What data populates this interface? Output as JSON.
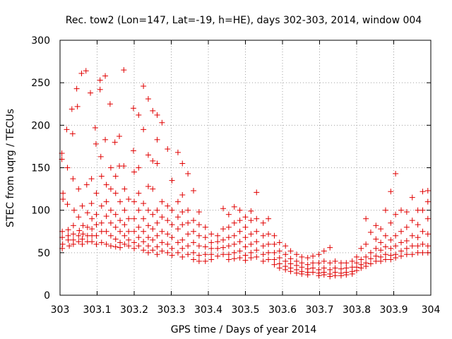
{
  "chart_data": {
    "type": "scatter",
    "title": "Rec. tow2 (Lon=147, Lat=-19, h=HE), days 302-303, 2014, window 004",
    "xlabel": "GPS time / Days of year 2014",
    "ylabel": "STEC from uqrg / TECUs",
    "xlim": [
      303,
      304
    ],
    "ylim": [
      0,
      300
    ],
    "x_ticks": [
      "303",
      "303.1",
      "303.2",
      "303.3",
      "303.4",
      "303.5",
      "303.6",
      "303.7",
      "303.8",
      "303.9",
      "304"
    ],
    "y_ticks": [
      "0",
      "50",
      "100",
      "150",
      "200",
      "250",
      "300"
    ],
    "grid": true,
    "marker": "plus",
    "color": "#e00000",
    "points": [
      [
        303.005,
        167
      ],
      [
        303.005,
        160
      ],
      [
        303.008,
        120
      ],
      [
        303.008,
        113
      ],
      [
        303.006,
        75
      ],
      [
        303.006,
        68
      ],
      [
        303.007,
        60
      ],
      [
        303.006,
        55
      ],
      [
        303.018,
        195
      ],
      [
        303.02,
        150
      ],
      [
        303.02,
        107
      ],
      [
        303.022,
        77
      ],
      [
        303.022,
        70
      ],
      [
        303.022,
        65
      ],
      [
        303.025,
        58
      ],
      [
        303.032,
        219
      ],
      [
        303.034,
        190
      ],
      [
        303.035,
        137
      ],
      [
        303.038,
        100
      ],
      [
        303.036,
        82
      ],
      [
        303.036,
        72
      ],
      [
        303.036,
        65
      ],
      [
        303.036,
        60
      ],
      [
        303.045,
        243
      ],
      [
        303.047,
        222
      ],
      [
        303.05,
        125
      ],
      [
        303.05,
        92
      ],
      [
        303.052,
        76
      ],
      [
        303.05,
        70
      ],
      [
        303.05,
        63
      ],
      [
        303.058,
        261
      ],
      [
        303.06,
        105
      ],
      [
        303.062,
        82
      ],
      [
        303.062,
        72
      ],
      [
        303.06,
        66
      ],
      [
        303.06,
        60
      ],
      [
        303.07,
        264
      ],
      [
        303.072,
        130
      ],
      [
        303.074,
        97
      ],
      [
        303.074,
        80
      ],
      [
        303.074,
        70
      ],
      [
        303.074,
        63
      ],
      [
        303.082,
        238
      ],
      [
        303.085,
        137
      ],
      [
        303.085,
        108
      ],
      [
        303.086,
        90
      ],
      [
        303.086,
        78
      ],
      [
        303.086,
        70
      ],
      [
        303.086,
        63
      ],
      [
        303.095,
        197
      ],
      [
        303.097,
        178
      ],
      [
        303.098,
        120
      ],
      [
        303.098,
        95
      ],
      [
        303.098,
        83
      ],
      [
        303.098,
        70
      ],
      [
        303.098,
        60
      ],
      [
        303.108,
        253
      ],
      [
        303.108,
        242
      ],
      [
        303.11,
        163
      ],
      [
        303.112,
        140
      ],
      [
        303.112,
        105
      ],
      [
        303.112,
        85
      ],
      [
        303.112,
        75
      ],
      [
        303.112,
        62
      ],
      [
        303.122,
        258
      ],
      [
        303.122,
        183
      ],
      [
        303.125,
        130
      ],
      [
        303.125,
        110
      ],
      [
        303.125,
        93
      ],
      [
        303.125,
        75
      ],
      [
        303.125,
        60
      ],
      [
        303.135,
        225
      ],
      [
        303.137,
        150
      ],
      [
        303.137,
        125
      ],
      [
        303.137,
        100
      ],
      [
        303.137,
        85
      ],
      [
        303.137,
        70
      ],
      [
        303.137,
        58
      ],
      [
        303.148,
        180
      ],
      [
        303.15,
        140
      ],
      [
        303.15,
        120
      ],
      [
        303.15,
        95
      ],
      [
        303.15,
        80
      ],
      [
        303.15,
        66
      ],
      [
        303.15,
        57
      ],
      [
        303.16,
        187
      ],
      [
        303.16,
        152
      ],
      [
        303.162,
        110
      ],
      [
        303.162,
        88
      ],
      [
        303.162,
        75
      ],
      [
        303.162,
        62
      ],
      [
        303.162,
        56
      ],
      [
        303.172,
        265
      ],
      [
        303.172,
        152
      ],
      [
        303.174,
        125
      ],
      [
        303.174,
        100
      ],
      [
        303.174,
        83
      ],
      [
        303.174,
        70
      ],
      [
        303.174,
        60
      ],
      [
        303.185,
        113
      ],
      [
        303.185,
        90
      ],
      [
        303.185,
        75
      ],
      [
        303.185,
        65
      ],
      [
        303.185,
        58
      ],
      [
        303.198,
        220
      ],
      [
        303.198,
        170
      ],
      [
        303.2,
        145
      ],
      [
        303.2,
        110
      ],
      [
        303.2,
        90
      ],
      [
        303.2,
        75
      ],
      [
        303.2,
        62
      ],
      [
        303.2,
        55
      ],
      [
        303.212,
        212
      ],
      [
        303.212,
        150
      ],
      [
        303.212,
        120
      ],
      [
        303.212,
        100
      ],
      [
        303.212,
        80
      ],
      [
        303.212,
        68
      ],
      [
        303.212,
        58
      ],
      [
        303.225,
        246
      ],
      [
        303.225,
        195
      ],
      [
        303.225,
        108
      ],
      [
        303.225,
        90
      ],
      [
        303.225,
        75
      ],
      [
        303.225,
        63
      ],
      [
        303.225,
        53
      ],
      [
        303.238,
        231
      ],
      [
        303.238,
        165
      ],
      [
        303.238,
        128
      ],
      [
        303.238,
        100
      ],
      [
        303.238,
        82
      ],
      [
        303.238,
        68
      ],
      [
        303.238,
        58
      ],
      [
        303.238,
        50
      ],
      [
        303.25,
        217
      ],
      [
        303.25,
        158
      ],
      [
        303.25,
        125
      ],
      [
        303.25,
        95
      ],
      [
        303.25,
        78
      ],
      [
        303.25,
        65
      ],
      [
        303.25,
        53
      ],
      [
        303.262,
        212
      ],
      [
        303.262,
        183
      ],
      [
        303.262,
        155
      ],
      [
        303.262,
        100
      ],
      [
        303.262,
        85
      ],
      [
        303.262,
        70
      ],
      [
        303.262,
        57
      ],
      [
        303.262,
        48
      ],
      [
        303.275,
        203
      ],
      [
        303.275,
        110
      ],
      [
        303.275,
        92
      ],
      [
        303.275,
        75
      ],
      [
        303.275,
        62
      ],
      [
        303.275,
        52
      ],
      [
        303.29,
        172
      ],
      [
        303.29,
        105
      ],
      [
        303.29,
        88
      ],
      [
        303.29,
        72
      ],
      [
        303.29,
        60
      ],
      [
        303.29,
        50
      ],
      [
        303.302,
        135
      ],
      [
        303.302,
        100
      ],
      [
        303.302,
        83
      ],
      [
        303.302,
        68
      ],
      [
        303.302,
        55
      ],
      [
        303.302,
        47
      ],
      [
        303.318,
        168
      ],
      [
        303.318,
        110
      ],
      [
        303.318,
        92
      ],
      [
        303.318,
        78
      ],
      [
        303.318,
        62
      ],
      [
        303.318,
        50
      ],
      [
        303.33,
        155
      ],
      [
        303.33,
        118
      ],
      [
        303.33,
        98
      ],
      [
        303.33,
        83
      ],
      [
        303.33,
        65
      ],
      [
        303.33,
        55
      ],
      [
        303.33,
        45
      ],
      [
        303.345,
        143
      ],
      [
        303.345,
        100
      ],
      [
        303.345,
        85
      ],
      [
        303.345,
        72
      ],
      [
        303.345,
        58
      ],
      [
        303.345,
        48
      ],
      [
        303.36,
        123
      ],
      [
        303.36,
        88
      ],
      [
        303.36,
        75
      ],
      [
        303.36,
        62
      ],
      [
        303.36,
        50
      ],
      [
        303.36,
        42
      ],
      [
        303.375,
        98
      ],
      [
        303.375,
        83
      ],
      [
        303.375,
        70
      ],
      [
        303.375,
        58
      ],
      [
        303.375,
        47
      ],
      [
        303.375,
        40
      ],
      [
        303.392,
        80
      ],
      [
        303.392,
        68
      ],
      [
        303.392,
        57
      ],
      [
        303.392,
        48
      ],
      [
        303.392,
        40
      ],
      [
        303.408,
        72
      ],
      [
        303.408,
        62
      ],
      [
        303.408,
        55
      ],
      [
        303.408,
        48
      ],
      [
        303.408,
        42
      ],
      [
        303.425,
        70
      ],
      [
        303.425,
        63
      ],
      [
        303.425,
        55
      ],
      [
        303.425,
        46
      ],
      [
        303.44,
        102
      ],
      [
        303.44,
        78
      ],
      [
        303.44,
        65
      ],
      [
        303.44,
        56
      ],
      [
        303.44,
        48
      ],
      [
        303.455,
        95
      ],
      [
        303.455,
        80
      ],
      [
        303.455,
        68
      ],
      [
        303.455,
        58
      ],
      [
        303.455,
        48
      ],
      [
        303.455,
        42
      ],
      [
        303.47,
        104
      ],
      [
        303.47,
        85
      ],
      [
        303.47,
        70
      ],
      [
        303.47,
        60
      ],
      [
        303.47,
        50
      ],
      [
        303.47,
        43
      ],
      [
        303.485,
        100
      ],
      [
        303.485,
        88
      ],
      [
        303.485,
        75
      ],
      [
        303.485,
        63
      ],
      [
        303.485,
        52
      ],
      [
        303.485,
        44
      ],
      [
        303.5,
        92
      ],
      [
        303.5,
        80
      ],
      [
        303.5,
        68
      ],
      [
        303.5,
        57
      ],
      [
        303.5,
        47
      ],
      [
        303.5,
        41
      ],
      [
        303.515,
        99
      ],
      [
        303.515,
        88
      ],
      [
        303.515,
        72
      ],
      [
        303.515,
        60
      ],
      [
        303.515,
        50
      ],
      [
        303.515,
        44
      ],
      [
        303.53,
        121
      ],
      [
        303.53,
        90
      ],
      [
        303.53,
        75
      ],
      [
        303.53,
        63
      ],
      [
        303.53,
        53
      ],
      [
        303.53,
        45
      ],
      [
        303.548,
        85
      ],
      [
        303.548,
        70
      ],
      [
        303.548,
        58
      ],
      [
        303.548,
        48
      ],
      [
        303.548,
        40
      ],
      [
        303.562,
        90
      ],
      [
        303.562,
        72
      ],
      [
        303.562,
        60
      ],
      [
        303.562,
        50
      ],
      [
        303.562,
        42
      ],
      [
        303.578,
        70
      ],
      [
        303.578,
        60
      ],
      [
        303.578,
        50
      ],
      [
        303.578,
        42
      ],
      [
        303.578,
        36
      ],
      [
        303.592,
        62
      ],
      [
        303.592,
        52
      ],
      [
        303.592,
        44
      ],
      [
        303.592,
        37
      ],
      [
        303.592,
        32
      ],
      [
        303.608,
        58
      ],
      [
        303.608,
        48
      ],
      [
        303.608,
        40
      ],
      [
        303.608,
        34
      ],
      [
        303.608,
        30
      ],
      [
        303.622,
        52
      ],
      [
        303.622,
        43
      ],
      [
        303.622,
        37
      ],
      [
        303.622,
        32
      ],
      [
        303.622,
        28
      ],
      [
        303.638,
        48
      ],
      [
        303.638,
        40
      ],
      [
        303.638,
        35
      ],
      [
        303.638,
        30
      ],
      [
        303.638,
        26
      ],
      [
        303.652,
        45
      ],
      [
        303.652,
        38
      ],
      [
        303.652,
        33
      ],
      [
        303.652,
        28
      ],
      [
        303.652,
        25
      ],
      [
        303.668,
        44
      ],
      [
        303.668,
        36
      ],
      [
        303.668,
        31
      ],
      [
        303.668,
        27
      ],
      [
        303.668,
        24
      ],
      [
        303.682,
        46
      ],
      [
        303.682,
        38
      ],
      [
        303.682,
        32
      ],
      [
        303.682,
        27
      ],
      [
        303.698,
        48
      ],
      [
        303.698,
        38
      ],
      [
        303.698,
        30
      ],
      [
        303.698,
        26
      ],
      [
        303.698,
        23
      ],
      [
        303.712,
        52
      ],
      [
        303.712,
        40
      ],
      [
        303.712,
        32
      ],
      [
        303.712,
        27
      ],
      [
        303.712,
        24
      ],
      [
        303.728,
        56
      ],
      [
        303.728,
        38
      ],
      [
        303.728,
        30
      ],
      [
        303.728,
        25
      ],
      [
        303.728,
        22
      ],
      [
        303.742,
        40
      ],
      [
        303.742,
        32
      ],
      [
        303.742,
        27
      ],
      [
        303.742,
        23
      ],
      [
        303.758,
        38
      ],
      [
        303.758,
        31
      ],
      [
        303.758,
        26
      ],
      [
        303.758,
        23
      ],
      [
        303.772,
        38
      ],
      [
        303.772,
        32
      ],
      [
        303.772,
        27
      ],
      [
        303.772,
        24
      ],
      [
        303.788,
        40
      ],
      [
        303.788,
        33
      ],
      [
        303.788,
        28
      ],
      [
        303.788,
        25
      ],
      [
        303.8,
        45
      ],
      [
        303.8,
        38
      ],
      [
        303.8,
        33
      ],
      [
        303.8,
        29
      ],
      [
        303.812,
        55
      ],
      [
        303.812,
        42
      ],
      [
        303.812,
        36
      ],
      [
        303.812,
        32
      ],
      [
        303.825,
        90
      ],
      [
        303.825,
        60
      ],
      [
        303.825,
        45
      ],
      [
        303.825,
        38
      ],
      [
        303.825,
        34
      ],
      [
        303.838,
        74
      ],
      [
        303.838,
        50
      ],
      [
        303.838,
        43
      ],
      [
        303.838,
        37
      ],
      [
        303.852,
        82
      ],
      [
        303.852,
        66
      ],
      [
        303.852,
        55
      ],
      [
        303.852,
        46
      ],
      [
        303.852,
        40
      ],
      [
        303.865,
        78
      ],
      [
        303.865,
        62
      ],
      [
        303.865,
        53
      ],
      [
        303.865,
        45
      ],
      [
        303.865,
        40
      ],
      [
        303.878,
        100
      ],
      [
        303.878,
        70
      ],
      [
        303.878,
        57
      ],
      [
        303.878,
        48
      ],
      [
        303.878,
        42
      ],
      [
        303.892,
        122
      ],
      [
        303.892,
        85
      ],
      [
        303.892,
        65
      ],
      [
        303.892,
        55
      ],
      [
        303.892,
        47
      ],
      [
        303.892,
        42
      ],
      [
        303.905,
        143
      ],
      [
        303.905,
        95
      ],
      [
        303.905,
        70
      ],
      [
        303.905,
        58
      ],
      [
        303.905,
        48
      ],
      [
        303.905,
        44
      ],
      [
        303.92,
        100
      ],
      [
        303.92,
        75
      ],
      [
        303.92,
        62
      ],
      [
        303.92,
        52
      ],
      [
        303.92,
        46
      ],
      [
        303.935,
        98
      ],
      [
        303.935,
        80
      ],
      [
        303.935,
        64
      ],
      [
        303.935,
        55
      ],
      [
        303.935,
        48
      ],
      [
        303.95,
        115
      ],
      [
        303.95,
        88
      ],
      [
        303.95,
        70
      ],
      [
        303.95,
        58
      ],
      [
        303.95,
        48
      ],
      [
        303.965,
        100
      ],
      [
        303.965,
        83
      ],
      [
        303.965,
        68
      ],
      [
        303.965,
        58
      ],
      [
        303.965,
        50
      ],
      [
        303.978,
        122
      ],
      [
        303.978,
        100
      ],
      [
        303.978,
        75
      ],
      [
        303.978,
        60
      ],
      [
        303.978,
        50
      ],
      [
        303.992,
        123
      ],
      [
        303.992,
        110
      ],
      [
        303.992,
        90
      ],
      [
        303.992,
        72
      ],
      [
        303.992,
        58
      ],
      [
        303.992,
        50
      ]
    ]
  }
}
